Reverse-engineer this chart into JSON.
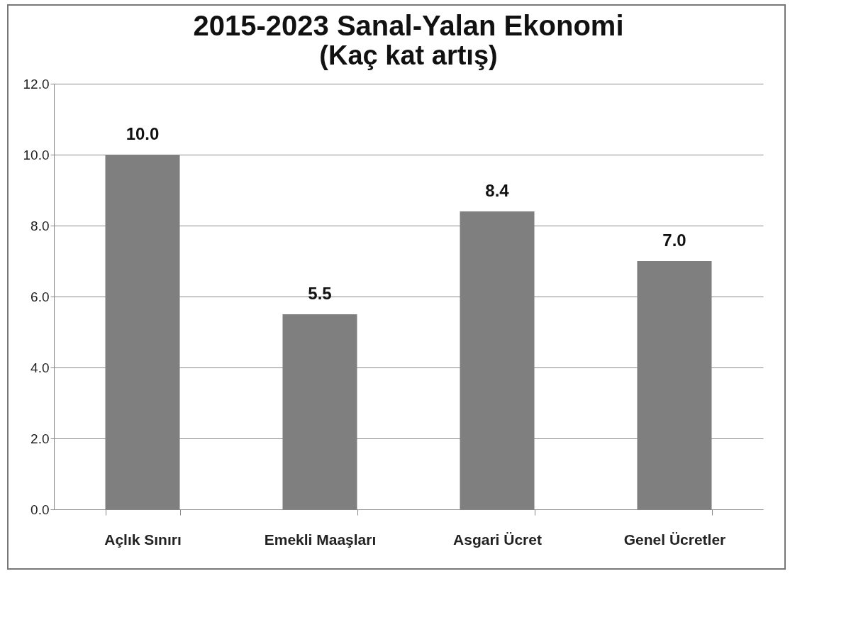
{
  "chart_data": {
    "type": "bar",
    "title": "2015-2023 Sanal-Yalan Ekonomi",
    "subtitle": "(Kaç kat artış)",
    "categories": [
      "Açlık Sınırı",
      "Emekli Maaşları",
      "Asgari Ücret",
      "Genel Ücretler"
    ],
    "values": [
      10.0,
      5.5,
      8.4,
      7.0
    ],
    "color": "#7f7f7f",
    "ylim": [
      0,
      12
    ],
    "yticks": [
      {
        "value": 0,
        "label": "0.0"
      },
      {
        "value": 2,
        "label": "2.0"
      },
      {
        "value": 4,
        "label": "4.0"
      },
      {
        "value": 6,
        "label": "6.0"
      },
      {
        "value": 8,
        "label": "8.0"
      },
      {
        "value": 10,
        "label": "10.0"
      },
      {
        "value": 12,
        "label": "12.0"
      }
    ],
    "grid": "y",
    "value_labels": [
      "10.0",
      "5.5",
      "8.4",
      "7.0"
    ]
  }
}
